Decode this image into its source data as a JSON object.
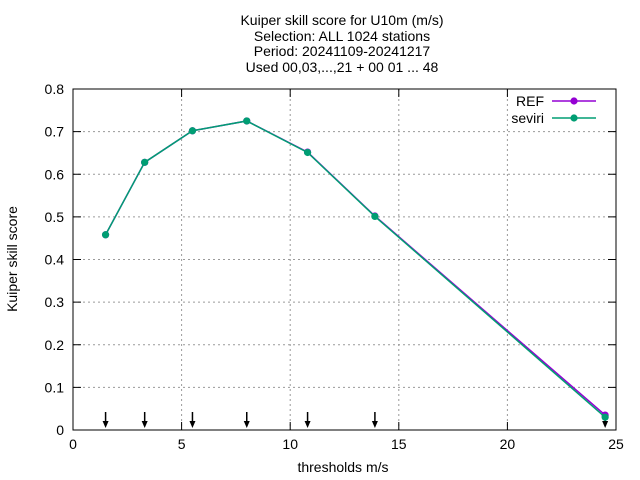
{
  "chart_data": {
    "type": "line",
    "title_lines": [
      "Kuiper skill score  for U10m (m/s)",
      "Selection: ALL   1024 stations",
      "Period: 20241109-20241217",
      "Used 00,03,...,21 + 00 01 ... 48"
    ],
    "xlabel": "thresholds m/s",
    "ylabel": "Kuiper skill score",
    "xlim": [
      0,
      25
    ],
    "ylim": [
      0,
      0.8
    ],
    "xticks": [
      0,
      5,
      10,
      15,
      20,
      25
    ],
    "yticks": [
      0,
      0.1,
      0.2,
      0.3,
      0.4,
      0.5,
      0.6,
      0.7,
      0.8
    ],
    "xtick_labels": [
      "0",
      "5",
      "10",
      "15",
      "20",
      "25"
    ],
    "ytick_labels": [
      "0",
      "0.1",
      "0.2",
      "0.3",
      "0.4",
      "0.5",
      "0.6",
      "0.7",
      "0.8"
    ],
    "grid": true,
    "legend_position": "top-right",
    "series": [
      {
        "name": "REF",
        "color": "#9400d3",
        "x": [
          1.5,
          3.3,
          5.5,
          8.0,
          10.8,
          13.9,
          24.5
        ],
        "y": [
          0.458,
          0.628,
          0.702,
          0.725,
          0.652,
          0.502,
          0.035
        ]
      },
      {
        "name": "seviri",
        "color": "#009e73",
        "x": [
          1.5,
          3.3,
          5.5,
          8.0,
          10.8,
          13.9,
          24.5
        ],
        "y": [
          0.458,
          0.628,
          0.702,
          0.725,
          0.651,
          0.501,
          0.03
        ]
      }
    ],
    "threshold_arrows": [
      1.5,
      3.3,
      5.5,
      8.0,
      10.8,
      13.9,
      24.5
    ]
  }
}
